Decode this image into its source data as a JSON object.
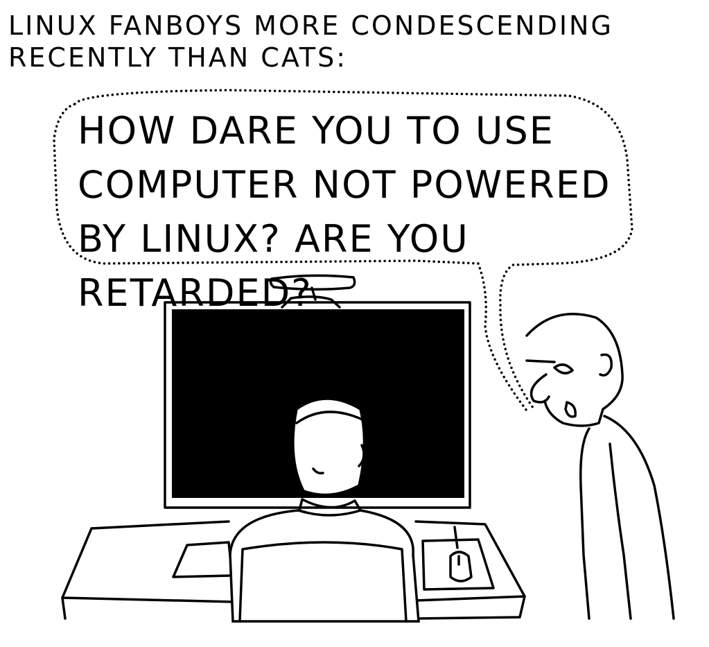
{
  "comic": {
    "caption": "LINUX FANBOYS MORE CONDESCENDING RECENTLY THAN CATS:",
    "speech": "HOW DARE YOU TO USE COMPUTER NOT POWERED BY LINUX? ARE YOU RETARDED?"
  },
  "colors": {
    "ink": "#000000",
    "paper": "#ffffff"
  }
}
